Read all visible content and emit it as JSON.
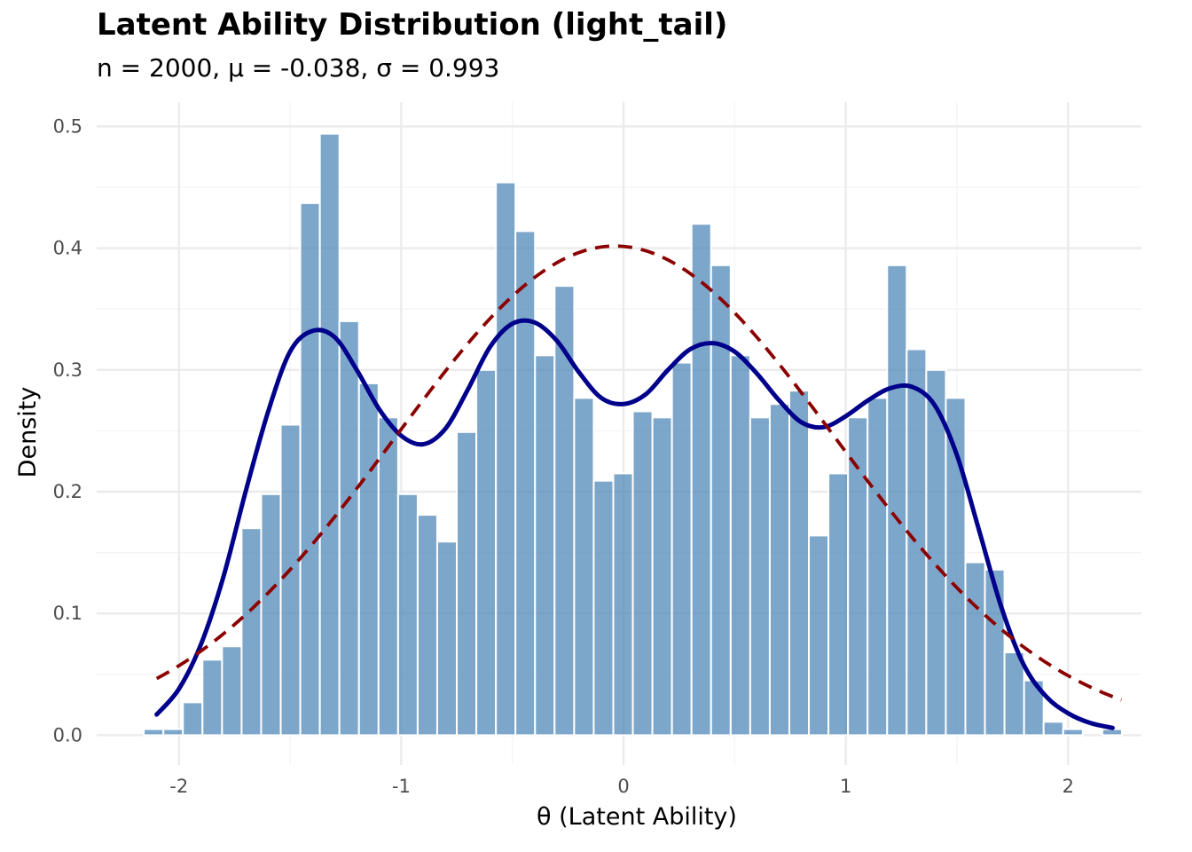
{
  "chart_data": {
    "type": "bar",
    "title": "Latent Ability Distribution (light_tail)",
    "subtitle": "n = 2000, μ = -0.038, σ = 0.993",
    "xlabel": "θ (Latent Ability)",
    "ylabel": "Density",
    "xlim": [
      -2.37,
      2.33
    ],
    "ylim": [
      -0.0245,
      0.52
    ],
    "x_ticks": [
      -2,
      -1,
      0,
      1,
      2
    ],
    "x_tick_labels": [
      "-2",
      "-1",
      "0",
      "1",
      "2"
    ],
    "y_ticks": [
      0.0,
      0.1,
      0.2,
      0.3,
      0.4,
      0.5
    ],
    "y_tick_labels": [
      "0.0",
      "0.1",
      "0.2",
      "0.3",
      "0.4",
      "0.5"
    ],
    "grid": true,
    "bin_width": 0.088,
    "bins": {
      "centers": [
        -2.114,
        -2.026,
        -1.938,
        -1.85,
        -1.762,
        -1.674,
        -1.586,
        -1.498,
        -1.41,
        -1.322,
        -1.234,
        -1.146,
        -1.058,
        -0.97,
        -0.882,
        -0.794,
        -0.706,
        -0.618,
        -0.53,
        -0.442,
        -0.354,
        -0.266,
        -0.178,
        -0.09,
        -0.002,
        0.086,
        0.174,
        0.262,
        0.35,
        0.438,
        0.526,
        0.614,
        0.702,
        0.79,
        0.878,
        0.966,
        1.054,
        1.142,
        1.23,
        1.318,
        1.406,
        1.494,
        1.582,
        1.67,
        1.758,
        1.846,
        1.934,
        2.022,
        2.11,
        2.198
      ],
      "density": [
        0.005,
        0.005,
        0.027,
        0.062,
        0.073,
        0.17,
        0.198,
        0.255,
        0.437,
        0.494,
        0.34,
        0.289,
        0.261,
        0.198,
        0.181,
        0.159,
        0.249,
        0.3,
        0.454,
        0.414,
        0.312,
        0.369,
        0.277,
        0.209,
        0.215,
        0.266,
        0.261,
        0.306,
        0.42,
        0.386,
        0.312,
        0.261,
        0.272,
        0.283,
        0.164,
        0.215,
        0.261,
        0.277,
        0.386,
        0.317,
        0.3,
        0.277,
        0.142,
        0.136,
        0.068,
        0.045,
        0.011,
        0.005,
        0.0,
        0.005
      ]
    },
    "series": [
      {
        "name": "",
        "kind": "kde",
        "style": "solid",
        "color": "#00008b",
        "x": [
          -2.1,
          -2.0,
          -1.9,
          -1.8,
          -1.7,
          -1.6,
          -1.5,
          -1.4,
          -1.3,
          -1.2,
          -1.1,
          -1.0,
          -0.9,
          -0.8,
          -0.7,
          -0.6,
          -0.5,
          -0.4,
          -0.3,
          -0.2,
          -0.1,
          0.0,
          0.1,
          0.2,
          0.3,
          0.4,
          0.5,
          0.6,
          0.7,
          0.8,
          0.9,
          1.0,
          1.1,
          1.2,
          1.3,
          1.4,
          1.5,
          1.6,
          1.7,
          1.8,
          1.9,
          2.0,
          2.1,
          2.2
        ],
        "y": [
          0.017,
          0.038,
          0.075,
          0.13,
          0.2,
          0.265,
          0.315,
          0.332,
          0.327,
          0.3,
          0.268,
          0.246,
          0.239,
          0.252,
          0.284,
          0.319,
          0.338,
          0.339,
          0.324,
          0.298,
          0.277,
          0.272,
          0.28,
          0.3,
          0.317,
          0.322,
          0.315,
          0.297,
          0.275,
          0.257,
          0.253,
          0.262,
          0.275,
          0.285,
          0.286,
          0.271,
          0.23,
          0.168,
          0.105,
          0.058,
          0.032,
          0.018,
          0.01,
          0.006
        ]
      },
      {
        "name": "",
        "kind": "normal",
        "style": "dashed",
        "color": "#8b0000",
        "mean": -0.038,
        "sd": 0.993,
        "x_range": [
          -2.1,
          2.24
        ]
      }
    ],
    "colors": {
      "bar_fill": "#4682b4",
      "bar_opacity": 0.7,
      "bar_outline": "#ffffff",
      "grid_major": "#ebebeb",
      "grid_minor": "#f3f3f3"
    }
  }
}
